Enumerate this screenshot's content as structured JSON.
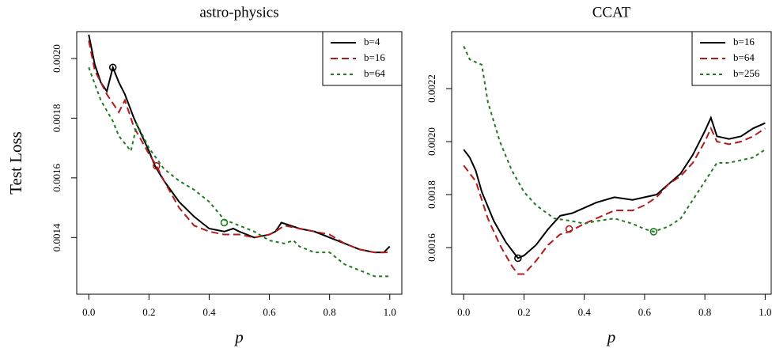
{
  "chart_data": [
    {
      "type": "line",
      "title": "astro-physics",
      "ylabel": "Test Loss",
      "xlabel": "p",
      "xlim": [
        -0.04,
        1.04
      ],
      "ylim": [
        0.00121,
        0.00209
      ],
      "xticks": [
        {
          "value": 0,
          "label": "0.0"
        },
        0.2,
        0.4,
        0.6,
        0.8,
        {
          "value": 1,
          "label": "1.0"
        }
      ],
      "yticks": [
        0.0014,
        0.0016,
        0.0018,
        {
          "value": 0.002,
          "label": "0.0020"
        }
      ],
      "legend": "top-right",
      "series": [
        {
          "name": "b=4",
          "color": "#000000",
          "dash": "solid",
          "x": [
            0,
            0.02,
            0.04,
            0.06,
            0.08,
            0.1,
            0.12,
            0.15,
            0.2,
            0.22,
            0.25,
            0.3,
            0.35,
            0.4,
            0.45,
            0.48,
            0.5,
            0.55,
            0.6,
            0.62,
            0.64,
            0.7,
            0.75,
            0.8,
            0.85,
            0.9,
            0.95,
            0.98,
            1.0
          ],
          "values": [
            0.00208,
            0.00198,
            0.00192,
            0.00189,
            0.00197,
            0.00192,
            0.00188,
            0.0018,
            0.00169,
            0.00164,
            0.00159,
            0.00152,
            0.00147,
            0.00143,
            0.00142,
            0.00143,
            0.00142,
            0.0014,
            0.00141,
            0.00142,
            0.00145,
            0.00143,
            0.00142,
            0.0014,
            0.00138,
            0.00136,
            0.00135,
            0.00135,
            0.00137
          ],
          "highlight": {
            "x": 0.08,
            "y": 0.00197
          }
        },
        {
          "name": "b=16",
          "color": "#b01a1a",
          "dash": "dashed",
          "x": [
            0,
            0.02,
            0.06,
            0.1,
            0.12,
            0.15,
            0.2,
            0.225,
            0.25,
            0.3,
            0.35,
            0.4,
            0.45,
            0.5,
            0.55,
            0.6,
            0.62,
            0.65,
            0.7,
            0.75,
            0.8,
            0.85,
            0.9,
            0.95,
            1.0
          ],
          "values": [
            0.00206,
            0.00196,
            0.00188,
            0.00182,
            0.00186,
            0.00177,
            0.00168,
            0.00164,
            0.00159,
            0.0015,
            0.00144,
            0.00142,
            0.00141,
            0.00141,
            0.0014,
            0.00141,
            0.00142,
            0.00144,
            0.00143,
            0.00142,
            0.00141,
            0.00138,
            0.00136,
            0.00135,
            0.00135
          ],
          "highlight": {
            "x": 0.225,
            "y": 0.00164
          }
        },
        {
          "name": "b=64",
          "color": "#1f7a1f",
          "dash": "dotted",
          "x": [
            0,
            0.04,
            0.08,
            0.1,
            0.14,
            0.16,
            0.2,
            0.25,
            0.3,
            0.35,
            0.4,
            0.45,
            0.5,
            0.55,
            0.6,
            0.65,
            0.68,
            0.7,
            0.75,
            0.8,
            0.85,
            0.9,
            0.95,
            1.0
          ],
          "values": [
            0.00197,
            0.00186,
            0.00179,
            0.00174,
            0.00169,
            0.00178,
            0.0017,
            0.00163,
            0.00159,
            0.00156,
            0.00152,
            0.00146,
            0.00144,
            0.00142,
            0.00139,
            0.00138,
            0.00139,
            0.00137,
            0.00135,
            0.00135,
            0.00131,
            0.00129,
            0.00127,
            0.00127
          ],
          "highlight": {
            "x": 0.45,
            "y": 0.00145
          }
        }
      ]
    },
    {
      "type": "line",
      "title": "CCAT",
      "xlabel": "p",
      "xlim": [
        -0.04,
        1.02
      ],
      "ylim": [
        0.001424,
        0.002415
      ],
      "xticks": [
        {
          "value": 0,
          "label": "0.0"
        },
        0.2,
        0.4,
        0.6,
        0.8,
        {
          "value": 1,
          "label": "1.0"
        }
      ],
      "yticks": [
        0.0016,
        0.0018,
        {
          "value": 0.002,
          "label": "0.0020"
        },
        0.0022
      ],
      "legend": "top-right",
      "series": [
        {
          "name": "b=16",
          "color": "#000000",
          "dash": "solid",
          "x": [
            0,
            0.02,
            0.04,
            0.06,
            0.1,
            0.14,
            0.18,
            0.2,
            0.24,
            0.28,
            0.32,
            0.36,
            0.4,
            0.44,
            0.5,
            0.56,
            0.6,
            0.64,
            0.68,
            0.72,
            0.76,
            0.8,
            0.82,
            0.84,
            0.88,
            0.92,
            0.96,
            1.0
          ],
          "values": [
            0.00197,
            0.00194,
            0.00189,
            0.00181,
            0.0017,
            0.00162,
            0.00156,
            0.00157,
            0.00161,
            0.00167,
            0.00172,
            0.00173,
            0.00175,
            0.00177,
            0.00179,
            0.00178,
            0.00179,
            0.0018,
            0.00184,
            0.00188,
            0.00195,
            0.00204,
            0.00209,
            0.00202,
            0.00201,
            0.00202,
            0.00205,
            0.00207
          ],
          "highlight": {
            "x": 0.18,
            "y": 0.00156
          }
        },
        {
          "name": "b=64",
          "color": "#b01a1a",
          "dash": "dashed",
          "x": [
            0,
            0.04,
            0.08,
            0.12,
            0.16,
            0.18,
            0.2,
            0.24,
            0.28,
            0.32,
            0.35,
            0.4,
            0.44,
            0.5,
            0.56,
            0.6,
            0.64,
            0.68,
            0.72,
            0.76,
            0.8,
            0.82,
            0.84,
            0.88,
            0.92,
            0.96,
            1.0
          ],
          "values": [
            0.00191,
            0.00185,
            0.00171,
            0.00161,
            0.00153,
            0.0015,
            0.0015,
            0.00155,
            0.00161,
            0.00165,
            0.00166,
            0.00169,
            0.00171,
            0.00174,
            0.00174,
            0.00176,
            0.00179,
            0.00184,
            0.00187,
            0.00192,
            0.002,
            0.00205,
            0.002,
            0.00199,
            0.002,
            0.00202,
            0.00205
          ],
          "highlight": {
            "x": 0.35,
            "y": 0.00167
          }
        },
        {
          "name": "b=256",
          "color": "#1f7a1f",
          "dash": "dotted",
          "x": [
            0,
            0.02,
            0.06,
            0.08,
            0.12,
            0.16,
            0.2,
            0.24,
            0.3,
            0.36,
            0.4,
            0.44,
            0.5,
            0.56,
            0.6,
            0.63,
            0.68,
            0.72,
            0.76,
            0.8,
            0.84,
            0.88,
            0.92,
            0.96,
            1.0
          ],
          "values": [
            0.00236,
            0.00231,
            0.00229,
            0.00215,
            0.002,
            0.00189,
            0.00181,
            0.00176,
            0.00171,
            0.0017,
            0.00169,
            0.0017,
            0.00171,
            0.00169,
            0.00167,
            0.00166,
            0.00168,
            0.00171,
            0.00178,
            0.00185,
            0.00192,
            0.00192,
            0.00193,
            0.00194,
            0.00197
          ],
          "highlight": {
            "x": 0.63,
            "y": 0.00166
          }
        }
      ]
    }
  ]
}
